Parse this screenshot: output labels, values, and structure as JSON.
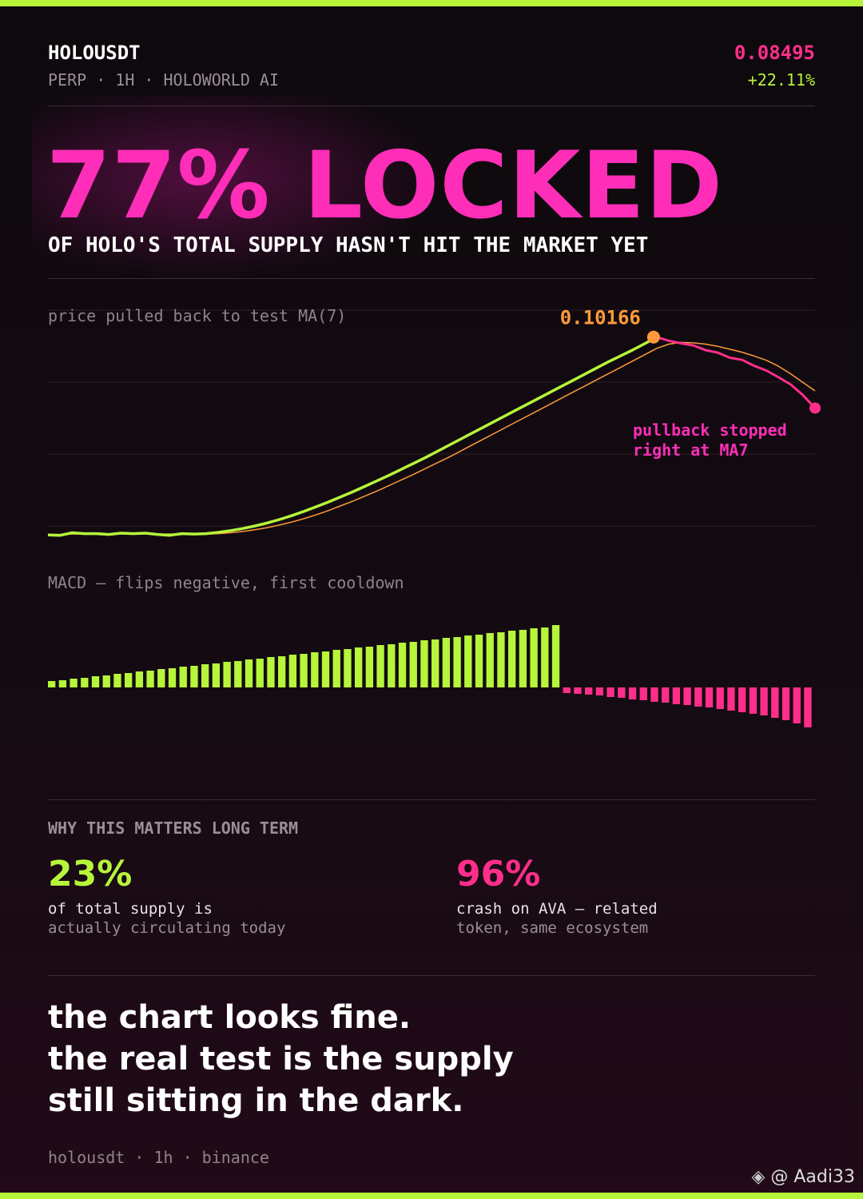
{
  "header": {
    "symbol": "HOLOUSDT",
    "meta": "PERP · 1H · HOLOWORLD AI",
    "price": "0.08495",
    "change": "+22.11%"
  },
  "headline": {
    "title": "77% LOCKED",
    "subtitle": "OF HOLO'S TOTAL SUPPLY HASN'T HIT THE MARKET YET"
  },
  "chart_data": [
    {
      "type": "line",
      "title": "price pulled back to test MA(7)",
      "ylim": [
        0.054,
        0.108
      ],
      "down_color": "#ff2e8a",
      "series": [
        {
          "color": "#b6f53a",
          "values": [
            0.0551,
            0.055,
            0.0556,
            0.0554,
            0.0554,
            0.0552,
            0.0555,
            0.0554,
            0.0555,
            0.0552,
            0.055,
            0.0554,
            0.0553,
            0.0554,
            0.0557,
            0.0561,
            0.0566,
            0.0572,
            0.0579,
            0.0587,
            0.0596,
            0.0606,
            0.0617,
            0.0628,
            0.064,
            0.0652,
            0.0665,
            0.0678,
            0.0691,
            0.0705,
            0.0719,
            0.0733,
            0.0748,
            0.0763,
            0.0778,
            0.0793,
            0.0808,
            0.0823,
            0.0838,
            0.0853,
            0.0868,
            0.0883,
            0.0898,
            0.0913,
            0.0928,
            0.0943,
            0.0958,
            0.0972,
            0.0986,
            0.1001,
            0.10166,
            0.1008,
            0.1002,
            0.0997,
            0.0986,
            0.098,
            0.0968,
            0.0963,
            0.0949,
            0.0938,
            0.0922,
            0.0905,
            0.088,
            0.08495
          ]
        },
        {
          "color": "#ff9a3c",
          "values": [
            0.0552,
            0.0552,
            0.0553,
            0.0553,
            0.0553,
            0.0553,
            0.0554,
            0.0554,
            0.0554,
            0.0553,
            0.0553,
            0.0553,
            0.0553,
            0.0553,
            0.0554,
            0.0556,
            0.0559,
            0.0563,
            0.0568,
            0.0574,
            0.0581,
            0.0589,
            0.0598,
            0.0608,
            0.0619,
            0.063,
            0.0642,
            0.0654,
            0.0667,
            0.068,
            0.0693,
            0.0707,
            0.0721,
            0.0735,
            0.075,
            0.0765,
            0.078,
            0.0795,
            0.081,
            0.0825,
            0.084,
            0.0855,
            0.087,
            0.0885,
            0.09,
            0.0915,
            0.093,
            0.0945,
            0.096,
            0.0975,
            0.099,
            0.1,
            0.1004,
            0.1003,
            0.1,
            0.0995,
            0.0988,
            0.0981,
            0.0972,
            0.0962,
            0.0948,
            0.093,
            0.091,
            0.089
          ]
        }
      ],
      "annotation": [
        "pullback stopped",
        "right at MA7"
      ]
    },
    {
      "type": "bar",
      "title": "MACD — flips negative, first cooldown",
      "ylim": [
        -100,
        100
      ],
      "up_color": "#b6f53a",
      "down_color": "#ff2e8a",
      "values": [
        8,
        9,
        11,
        12,
        14,
        15,
        17,
        18,
        20,
        21,
        23,
        24,
        26,
        27,
        29,
        30,
        32,
        33,
        35,
        36,
        38,
        39,
        41,
        42,
        44,
        45,
        47,
        48,
        50,
        51,
        53,
        54,
        56,
        57,
        59,
        60,
        62,
        63,
        65,
        66,
        68,
        69,
        71,
        72,
        74,
        75,
        78,
        -7,
        -8,
        -9,
        -10,
        -12,
        -13,
        -15,
        -16,
        -18,
        -19,
        -21,
        -22,
        -24,
        -25,
        -27,
        -29,
        -31,
        -33,
        -35,
        -38,
        -41,
        -45,
        -50
      ]
    }
  ],
  "stats": {
    "title": "WHY THIS MATTERS LONG TERM",
    "items": [
      {
        "value": "23%",
        "lines": [
          "of total supply is",
          "actually circulating today"
        ]
      },
      {
        "value": "96%",
        "lines": [
          "crash on AVA — related",
          "token, same ecosystem"
        ]
      }
    ]
  },
  "quote": [
    "the chart looks fine.",
    "the real test is the supply",
    "still sitting in the dark."
  ],
  "footer": "holousdt · 1h · binance",
  "watermark": "@ Aadi33"
}
